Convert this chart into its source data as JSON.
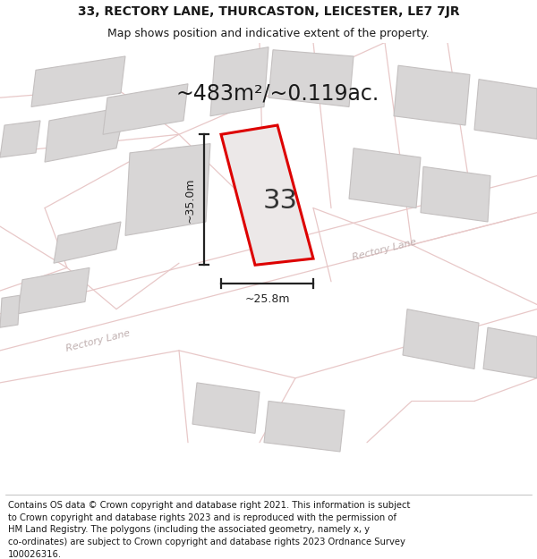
{
  "title_line1": "33, RECTORY LANE, THURCASTON, LEICESTER, LE7 7JR",
  "title_line2": "Map shows position and indicative extent of the property.",
  "area_text": "~483m²/~0.119ac.",
  "label_height": "~35.0m",
  "label_width": "~25.8m",
  "property_number": "33",
  "footer_lines": [
    "Contains OS data © Crown copyright and database right 2021. This information is subject",
    "to Crown copyright and database rights 2023 and is reproduced with the permission of",
    "HM Land Registry. The polygons (including the associated geometry, namely x, y",
    "co-ordinates) are subject to Crown copyright and database rights 2023 Ordnance Survey",
    "100026316."
  ],
  "map_bg": "#f0eeee",
  "plot_bg": "#e8e6e6",
  "building_fill": "#d8d6d6",
  "building_edge": "#c4c0c0",
  "road_line_color": "#e8c8c8",
  "property_fill": "#ece8e8",
  "property_edge": "#dd0000",
  "road_label_color": "#c0b0b0",
  "dim_color": "#222222",
  "title_fontsize": 10,
  "subtitle_fontsize": 9,
  "footer_fontsize": 7.2,
  "area_fontsize": 17,
  "dim_fontsize": 9,
  "num_fontsize": 22
}
